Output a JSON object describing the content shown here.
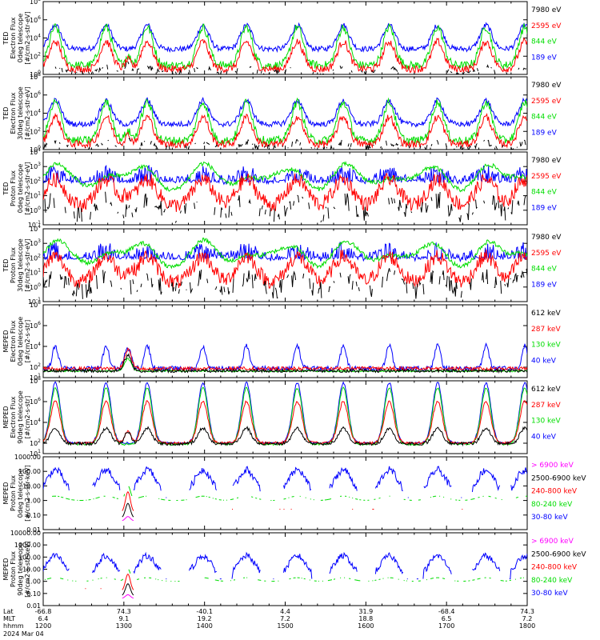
{
  "chart_data": {
    "type": "line",
    "x_tick_labels": {
      "lat": [
        "-66.8",
        "74.3",
        "-40.1",
        "4.4",
        "31.9",
        "-68.4",
        "74.3"
      ],
      "mlt": [
        "6.4",
        "9.1",
        "19.2",
        "7.2",
        "18.8",
        "6.5",
        "7.2"
      ],
      "hhmm": [
        "1200",
        "1300",
        "1400",
        "1500",
        "1600",
        "1700",
        "1800"
      ]
    },
    "x_row_labels": [
      "Lat",
      "MLT",
      "hhmm"
    ],
    "date_label": "2024 Mar 04",
    "panels": [
      {
        "ylabel": [
          "TED",
          "Electron Flux",
          "0deg telescope",
          "[#/cm2-s-str-eV]"
        ],
        "scale": "log",
        "ylim_exp": [
          0,
          8
        ],
        "ticks": [
          {
            "v": 8,
            "b": "10",
            "e": "8"
          },
          {
            "v": 6,
            "b": "10",
            "e": "6"
          },
          {
            "v": 4,
            "b": "10",
            "e": "4"
          },
          {
            "v": 2,
            "b": "10",
            "e": "2"
          },
          {
            "v": 0,
            "b": "10",
            "e": "0"
          }
        ],
        "legend": [
          {
            "label": "7980 eV",
            "color": "#000000"
          },
          {
            "label": "2595 eV",
            "color": "#ff0000"
          },
          {
            "label": "844 eV",
            "color": "#00dd00"
          },
          {
            "label": "189 eV",
            "color": "#0000ff"
          }
        ],
        "kind": "ted_e"
      },
      {
        "ylabel": [
          "TED",
          "Electron Flux",
          "30deg telescope",
          "[#/cm2-s-str-eV]"
        ],
        "scale": "log",
        "ylim_exp": [
          0,
          8
        ],
        "ticks": [
          {
            "v": 8,
            "b": "10",
            "e": "8"
          },
          {
            "v": 6,
            "b": "10",
            "e": "6"
          },
          {
            "v": 4,
            "b": "10",
            "e": "4"
          },
          {
            "v": 2,
            "b": "10",
            "e": "2"
          },
          {
            "v": 0,
            "b": "10",
            "e": "0"
          }
        ],
        "legend": [
          {
            "label": "7980 eV",
            "color": "#000000"
          },
          {
            "label": "2595 eV",
            "color": "#ff0000"
          },
          {
            "label": "844 eV",
            "color": "#00dd00"
          },
          {
            "label": "189 eV",
            "color": "#0000ff"
          }
        ],
        "kind": "ted_e"
      },
      {
        "ylabel": [
          "TED",
          "Proton Flux",
          "0deg telescope",
          "[#/cm2-s-str-eV]"
        ],
        "scale": "log",
        "ylim_exp": [
          -1,
          4
        ],
        "ticks": [
          {
            "v": 4,
            "b": "10",
            "e": "4"
          },
          {
            "v": 3,
            "b": "10",
            "e": "3"
          },
          {
            "v": 2,
            "b": "10",
            "e": "2"
          },
          {
            "v": 1,
            "b": "10",
            "e": "1"
          },
          {
            "v": 0,
            "b": "10",
            "e": "0"
          },
          {
            "v": -1,
            "b": "10",
            "e": "-1"
          }
        ],
        "legend": [
          {
            "label": "7980 eV",
            "color": "#000000"
          },
          {
            "label": "2595 eV",
            "color": "#ff0000"
          },
          {
            "label": "844 eV",
            "color": "#00dd00"
          },
          {
            "label": "189 eV",
            "color": "#0000ff"
          }
        ],
        "kind": "ted_p"
      },
      {
        "ylabel": [
          "TED",
          "Proton Flux",
          "30deg telescope",
          "[#/cm2-s-str-eV]"
        ],
        "scale": "log",
        "ylim_exp": [
          -1,
          4
        ],
        "ticks": [
          {
            "v": 4,
            "b": "10",
            "e": "4"
          },
          {
            "v": 3,
            "b": "10",
            "e": "3"
          },
          {
            "v": 2,
            "b": "10",
            "e": "2"
          },
          {
            "v": 1,
            "b": "10",
            "e": "1"
          },
          {
            "v": 0,
            "b": "10",
            "e": "0"
          },
          {
            "v": -1,
            "b": "10",
            "e": "-1"
          }
        ],
        "legend": [
          {
            "label": "7980 eV",
            "color": "#000000"
          },
          {
            "label": "2595 eV",
            "color": "#ff0000"
          },
          {
            "label": "844 eV",
            "color": "#00dd00"
          },
          {
            "label": "189 eV",
            "color": "#0000ff"
          }
        ],
        "kind": "ted_p"
      },
      {
        "ylabel": [
          "MEPED",
          "Electron Flux",
          "0deg telescope",
          "[#/cm2-s-str]"
        ],
        "scale": "log",
        "ylim_exp": [
          1,
          8
        ],
        "ticks": [
          {
            "v": 8,
            "b": "10",
            "e": "8"
          },
          {
            "v": 6,
            "b": "10",
            "e": "6"
          },
          {
            "v": 4,
            "b": "10",
            "e": "4"
          },
          {
            "v": 2,
            "b": "10",
            "e": "2"
          },
          {
            "v": 1,
            "b": "10",
            "e": "1"
          }
        ],
        "legend": [
          {
            "label": "612 keV",
            "color": "#000000"
          },
          {
            "label": "287 keV",
            "color": "#ff0000"
          },
          {
            "label": "130 keV",
            "color": "#00dd00"
          },
          {
            "label": "40 keV",
            "color": "#0000ff"
          }
        ],
        "kind": "mep_e0"
      },
      {
        "ylabel": [
          "MEPED",
          "Electron Flux",
          "90deg telescope",
          "[#/cm2-s-str]"
        ],
        "scale": "log",
        "ylim_exp": [
          1,
          8
        ],
        "ticks": [
          {
            "v": 8,
            "b": "10",
            "e": "8"
          },
          {
            "v": 6,
            "b": "10",
            "e": "6"
          },
          {
            "v": 4,
            "b": "10",
            "e": "4"
          },
          {
            "v": 2,
            "b": "10",
            "e": "2"
          },
          {
            "v": 1,
            "b": "10",
            "e": "1"
          }
        ],
        "legend": [
          {
            "label": "612 keV",
            "color": "#000000"
          },
          {
            "label": "287 keV",
            "color": "#ff0000"
          },
          {
            "label": "130 keV",
            "color": "#00dd00"
          },
          {
            "label": "40 keV",
            "color": "#0000ff"
          }
        ],
        "kind": "mep_e90"
      },
      {
        "ylabel": [
          "MEPED",
          "Proton Flux",
          "0deg telescope",
          "[#/cm2-s-str-keV]"
        ],
        "scale": "log",
        "ylim_exp": [
          -2,
          3
        ],
        "ticks": [
          {
            "v": 3,
            "b": "1000.00"
          },
          {
            "v": 2,
            "b": "100.00"
          },
          {
            "v": 1,
            "b": "10.00"
          },
          {
            "v": 0,
            "b": "1.00"
          },
          {
            "v": -1,
            "b": "0.10"
          },
          {
            "v": -2,
            "b": "0.01"
          }
        ],
        "legend": [
          {
            "label": "> 6900 keV",
            "color": "#ff00ff"
          },
          {
            "label": "2500-6900 keV",
            "color": "#000000"
          },
          {
            "label": "240-800 keV",
            "color": "#ff0000"
          },
          {
            "label": "80-240 keV",
            "color": "#00dd00"
          },
          {
            "label": "30-80 keV",
            "color": "#0000ff"
          }
        ],
        "kind": "mep_p0"
      },
      {
        "ylabel": [
          "MEPED",
          "Proton Flux",
          "90deg telescope",
          "[#/cm2-s-str-keV]"
        ],
        "scale": "log",
        "ylim_exp": [
          -2,
          4
        ],
        "ticks": [
          {
            "v": 4,
            "b": "10000.00"
          },
          {
            "v": 3,
            "b": "1000.00"
          },
          {
            "v": 2,
            "b": "100.00"
          },
          {
            "v": 1,
            "b": "10.00"
          },
          {
            "v": 0,
            "b": "1.00"
          },
          {
            "v": -1,
            "b": "0.10"
          },
          {
            "v": -2,
            "b": "0.01"
          }
        ],
        "legend": [
          {
            "label": "> 6900 keV",
            "color": "#ff00ff"
          },
          {
            "label": "2500-6900 keV",
            "color": "#000000"
          },
          {
            "label": "240-800 keV",
            "color": "#ff0000"
          },
          {
            "label": "80-240 keV",
            "color": "#00dd00"
          },
          {
            "label": "30-80 keV",
            "color": "#0000ff"
          }
        ],
        "kind": "mep_p90"
      }
    ],
    "pass_peaks_hhmm_fraction": [
      0.025,
      0.13,
      0.215,
      0.33,
      0.42,
      0.525,
      0.62,
      0.715,
      0.815,
      0.915,
      0.995
    ],
    "spike_event_fraction": 0.175
  }
}
